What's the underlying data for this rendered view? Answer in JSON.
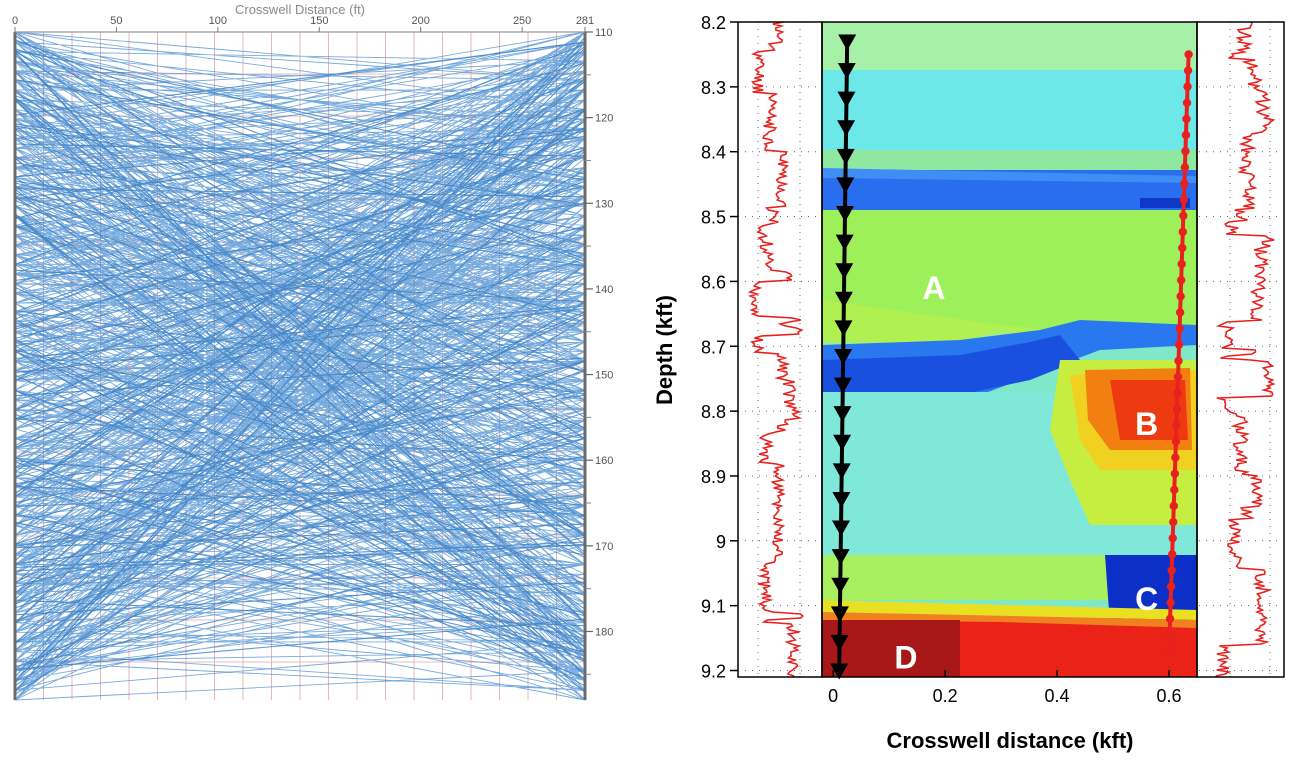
{
  "chart_data": [
    {
      "type": "raypath",
      "xlabel": "Crosswell Distance (ft)",
      "ylabel": "",
      "x_ticks": [
        "0",
        "50",
        "100",
        "150",
        "200",
        "250",
        "281"
      ],
      "y_ticks": [
        "110",
        "120",
        "130",
        "140",
        "150",
        "160",
        "170",
        "180"
      ],
      "xlim": [
        0,
        281
      ],
      "ylim": [
        110,
        188
      ],
      "grid": true,
      "ray_color": "#4b8fd1"
    },
    {
      "type": "heatmap",
      "xlabel": "Crosswell distance (kft)",
      "ylabel": "Depth (kft)",
      "x_ticks": [
        "0",
        "0.2",
        "0.4",
        "0.6"
      ],
      "y_ticks": [
        "8.2",
        "8.3",
        "8.4",
        "8.5",
        "8.6",
        "8.7",
        "8.8",
        "8.9",
        "9",
        "9.1",
        "9.2"
      ],
      "xlim": [
        -0.02,
        0.65
      ],
      "ylim": [
        8.2,
        9.21
      ],
      "grid": true,
      "zones": [
        {
          "label": "A",
          "x": 0.18,
          "y": 8.61
        },
        {
          "label": "B",
          "x": 0.56,
          "y": 8.82
        },
        {
          "label": "C",
          "x": 0.56,
          "y": 9.09
        },
        {
          "label": "D",
          "x": 0.13,
          "y": 9.18
        }
      ],
      "source_well": {
        "x": 0.025,
        "y_start": 8.23,
        "y_end": 9.2,
        "marker": "triangle-down",
        "color": "#000000"
      },
      "receiver_well": {
        "x_top": 0.635,
        "x_bottom": 0.6,
        "y_start": 8.25,
        "y_end": 9.17,
        "marker": "circle",
        "color": "#e8201e"
      },
      "log_color": "#e8201e"
    }
  ]
}
